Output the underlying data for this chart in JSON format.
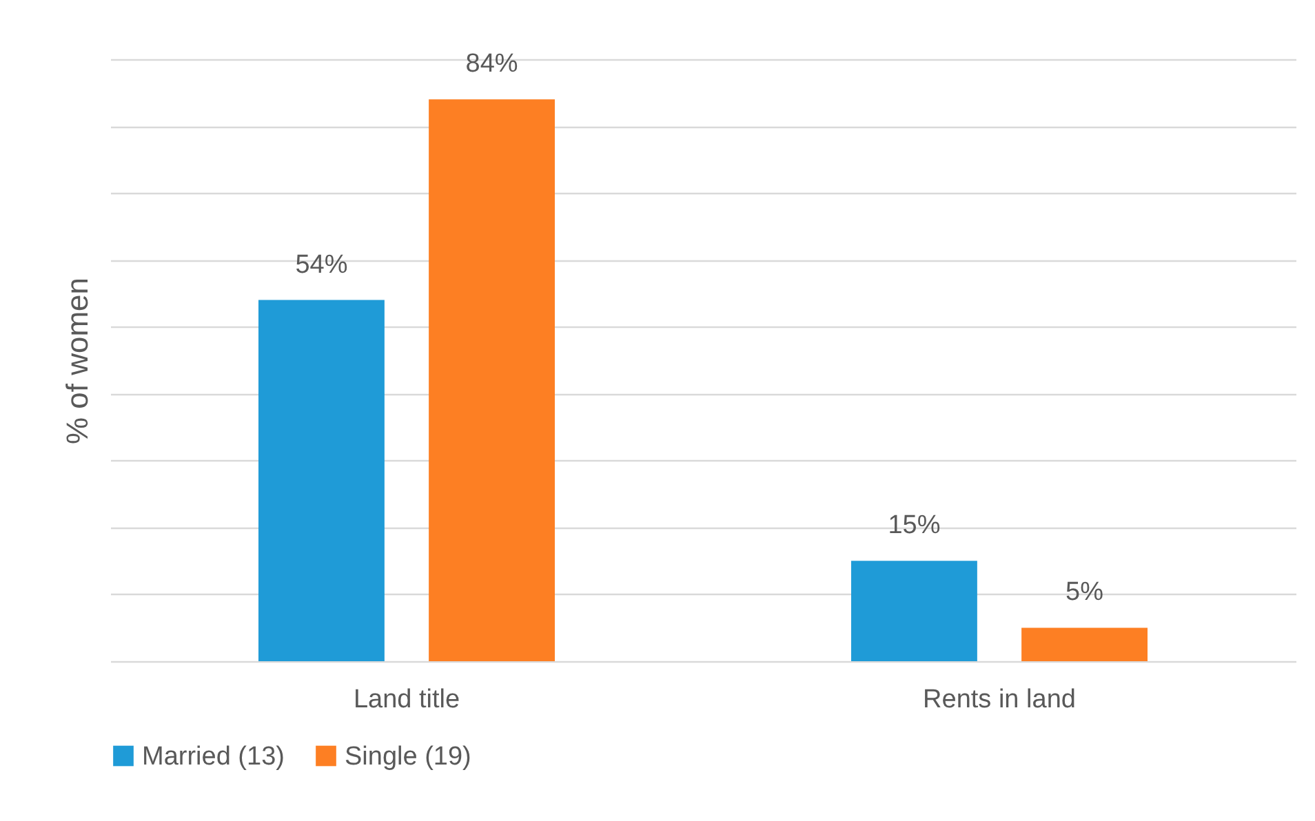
{
  "chart_data": {
    "type": "bar",
    "ylabel": "% of women",
    "categories": [
      "Land title",
      "Rents in land"
    ],
    "series": [
      {
        "name": "Married (13)",
        "color": "#1f9bd7",
        "values": [
          54,
          15
        ],
        "value_labels": [
          "54%",
          "15%"
        ]
      },
      {
        "name": "Single (19)",
        "color": "#fd7f23",
        "values": [
          84,
          5
        ],
        "value_labels": [
          "84%",
          "5%"
        ]
      }
    ],
    "ylim": [
      0,
      90
    ],
    "yticks": [
      {
        "value": 0,
        "label": null
      },
      {
        "value": 10,
        "label": null
      },
      {
        "value": 20,
        "label": null
      },
      {
        "value": 30,
        "label": null
      },
      {
        "value": 40,
        "label": null
      },
      {
        "value": 50,
        "label": null
      },
      {
        "value": 60,
        "label": null
      },
      {
        "value": 70,
        "label": null
      },
      {
        "value": 80,
        "label": null
      },
      {
        "value": 90,
        "label": null
      }
    ],
    "grid": true,
    "legend": "bottom",
    "tick_labels": "x"
  }
}
